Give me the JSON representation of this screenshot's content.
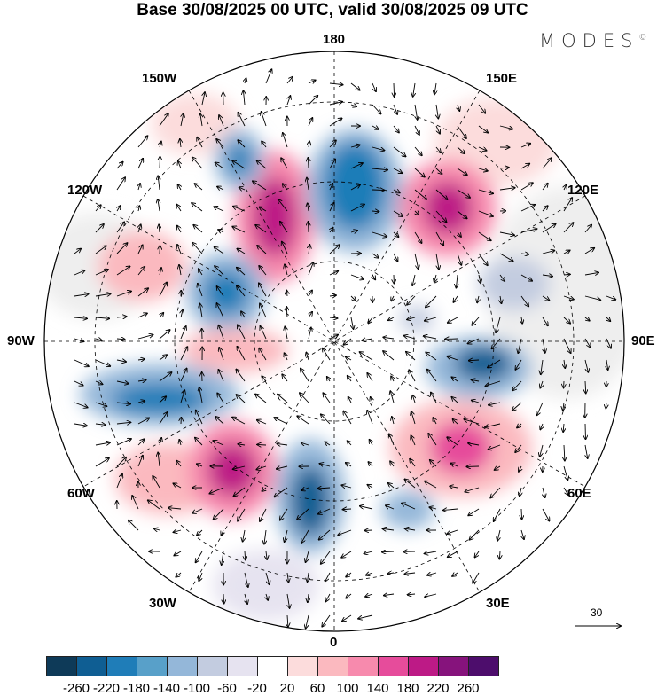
{
  "title": "Base 30/08/2025 00 UTC, valid 30/08/2025 09 UTC",
  "logo": "MODES",
  "logo_mark": "©",
  "map": {
    "longitude_labels": {
      "top": "180",
      "bottom": "0",
      "left": "90W",
      "right": "90E",
      "tl1": "150W",
      "tl2": "120W",
      "tr1": "150E",
      "tr2": "120E",
      "bl1": "60W",
      "bl2": "30W",
      "br1": "60E",
      "br2": "30E"
    },
    "reference_vector_label": "30"
  },
  "colorbar": {
    "colors": [
      "#0e3a58",
      "#0f5e93",
      "#1f7db8",
      "#58a0c9",
      "#94b7d9",
      "#c3cce0",
      "#e6e3f0",
      "#ffffff",
      "#fcdcdc",
      "#fbb9bf",
      "#f78aad",
      "#e64c9b",
      "#bd1a86",
      "#86137c",
      "#4d0d6c"
    ],
    "labels": [
      "-260",
      "-220",
      "-180",
      "-140",
      "-100",
      "-60",
      "-20",
      "20",
      "60",
      "100",
      "140",
      "180",
      "220",
      "260"
    ]
  }
}
